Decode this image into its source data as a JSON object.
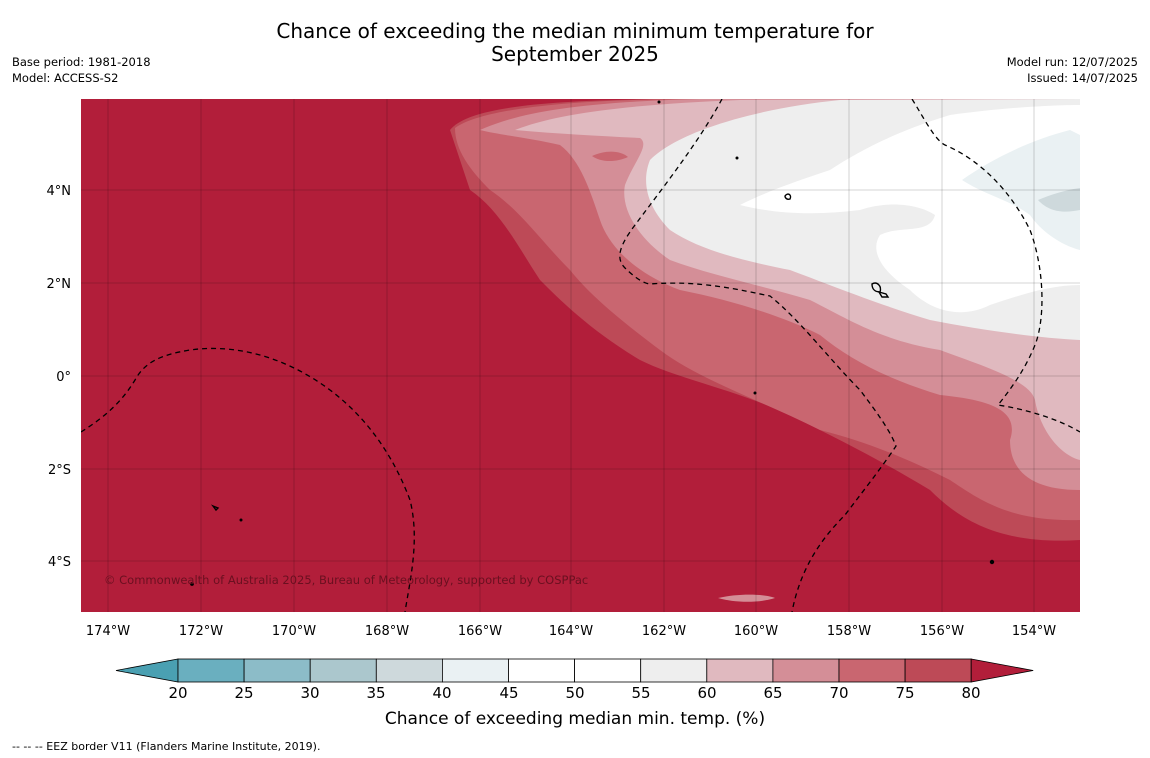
{
  "title_line1": "Chance of exceeding the median minimum temperature for",
  "title_line2": "September 2025",
  "base_period": "Base period: 1981-2018",
  "model": "Model: ACCESS-S2",
  "model_run": "Model run: 12/07/2025",
  "issued": "Issued: 14/07/2025",
  "copyright": "© Commonwealth of Australia 2025, Bureau of Meteorology, supported by COSPPac",
  "lon_ticks": [
    "174°W",
    "172°W",
    "170°W",
    "168°W",
    "166°W",
    "164°W",
    "162°W",
    "160°W",
    "158°W",
    "156°W",
    "154°W"
  ],
  "lat_ticks": [
    "4°N",
    "2°N",
    "0°",
    "2°S",
    "4°S"
  ],
  "colorbar": {
    "label": "Chance of exceeding median min. temp. (%)",
    "ticks": [
      "20",
      "25",
      "30",
      "35",
      "40",
      "45",
      "50",
      "55",
      "60",
      "65",
      "70",
      "75",
      "80"
    ],
    "colors": [
      "#4aa0b2",
      "#6aafbf",
      "#8cbcc8",
      "#abc7cd",
      "#ced9dc",
      "#eaf1f3",
      "#ffffff",
      "#ffffff",
      "#eeeeee",
      "#e0b9bf",
      "#d48e97",
      "#c96670",
      "#bd4a57",
      "#b21e3a"
    ]
  },
  "footer": "--  --  -- EEZ border V11 (Flanders Marine Institute, 2019)."
}
